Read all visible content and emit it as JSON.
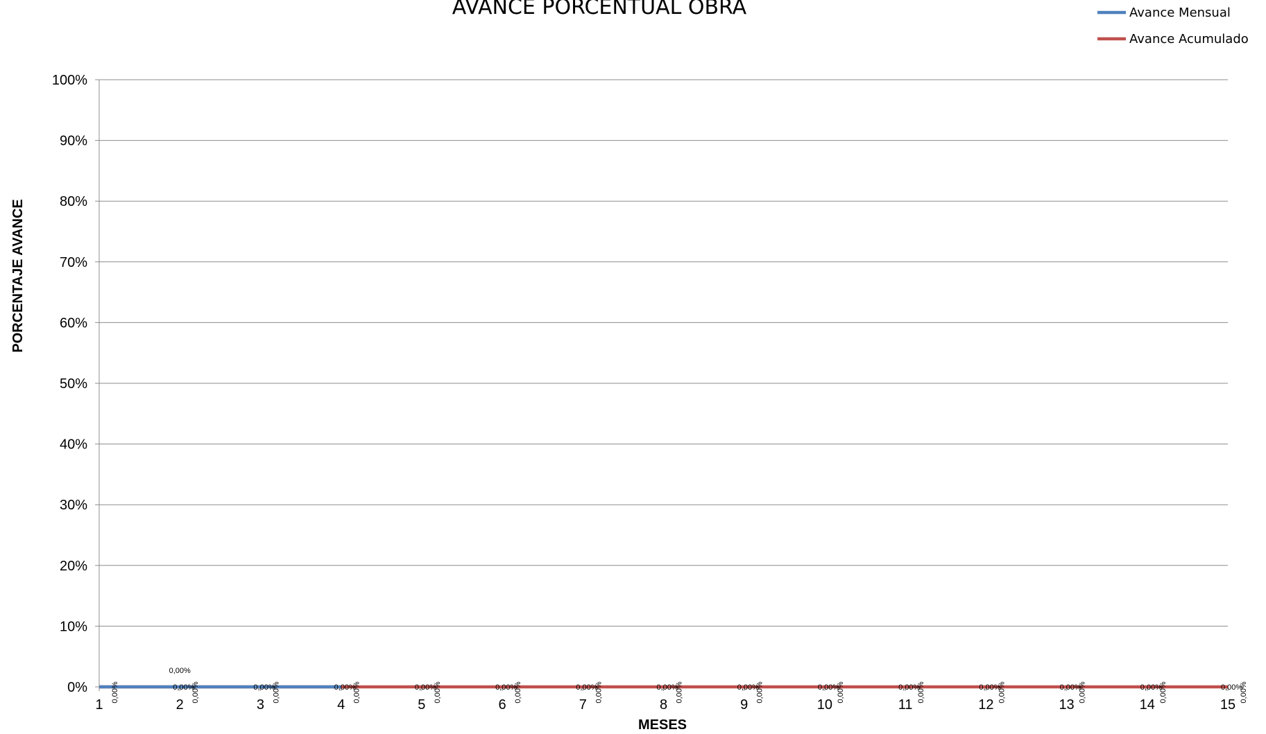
{
  "chart_data": {
    "type": "line",
    "title": "AVANCE PORCENTUAL OBRA",
    "xlabel": "MESES",
    "ylabel": "PORCENTAJE AVANCE",
    "x": [
      1,
      2,
      3,
      4,
      5,
      6,
      7,
      8,
      9,
      10,
      11,
      12,
      13,
      14,
      15
    ],
    "xlim": [
      1,
      15
    ],
    "ylim": [
      0,
      1
    ],
    "y_ticks": [
      "0%",
      "10%",
      "20%",
      "30%",
      "40%",
      "50%",
      "60%",
      "70%",
      "80%",
      "90%",
      "100%"
    ],
    "grid": true,
    "legend_position": "top-right",
    "series": [
      {
        "name": "Avance Mensual",
        "color": "#4F81BD",
        "x": [
          1,
          2,
          3,
          4
        ],
        "values": [
          0,
          0,
          0,
          0
        ],
        "labels": [
          "0,00%",
          "0,00%",
          "0,00%",
          "0,00%"
        ]
      },
      {
        "name": "Avance Acumulado",
        "color": "#C0504D",
        "x": [
          1,
          2,
          3,
          4,
          5,
          6,
          7,
          8,
          9,
          10,
          11,
          12,
          13,
          14,
          15
        ],
        "values": [
          0,
          0,
          0,
          0,
          0,
          0,
          0,
          0,
          0,
          0,
          0,
          0,
          0,
          0,
          0
        ],
        "labels": [
          "0,00%",
          "0,00%",
          "0,00%",
          "0,00%",
          "0,00%",
          "0,00%",
          "0,00%",
          "0,00%",
          "0,00%",
          "0,00%",
          "0,00%",
          "0,00%",
          "0,00%",
          "0,00%",
          "0,00%"
        ]
      }
    ]
  }
}
